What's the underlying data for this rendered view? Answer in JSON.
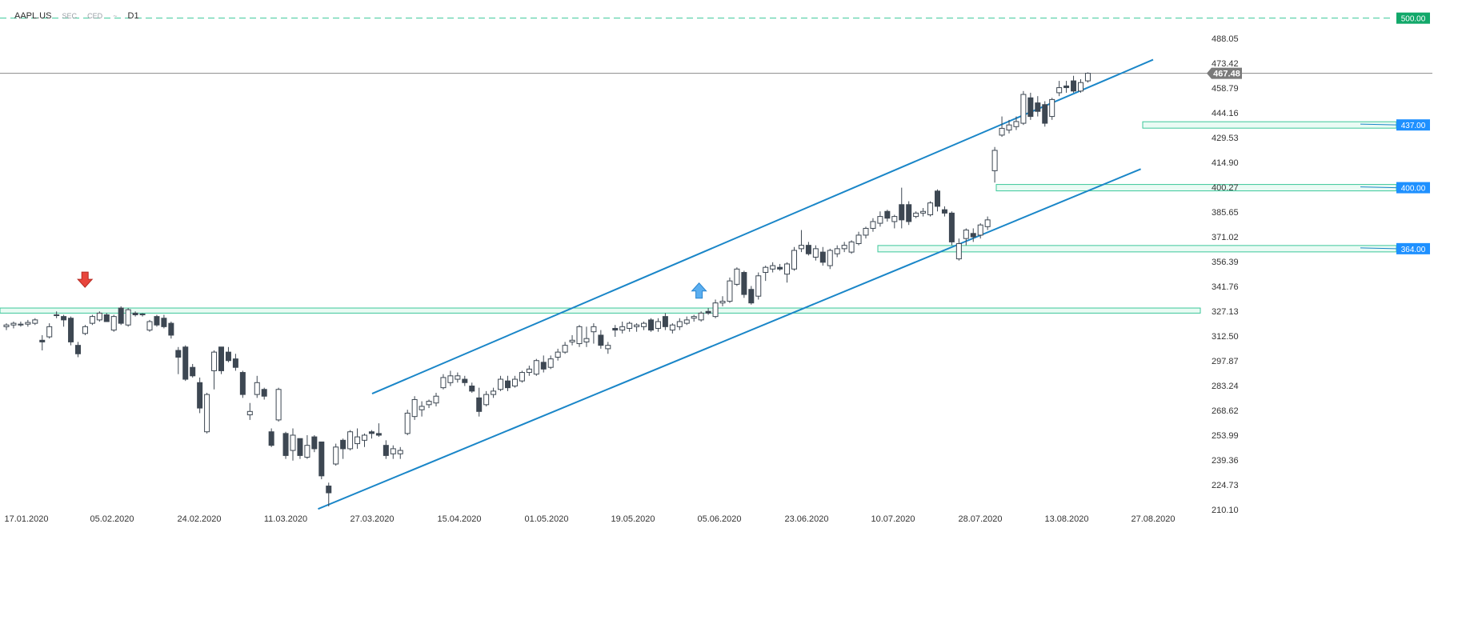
{
  "header": {
    "symbol": "AAPL.US",
    "flags": [
      "SEC",
      "CED",
      "~"
    ],
    "timeframe": "D1"
  },
  "colors": {
    "bull_fill": "#ffffff",
    "bear_fill": "#3d4752",
    "candle_stroke": "#3d4752",
    "trend": "#1a86c8",
    "zone": "#3cc79a",
    "label_blue": "#1e90ff",
    "label_green": "#12a86a",
    "price_tag": "#7a7a7a",
    "grid_text": "#333333"
  },
  "chart_data": {
    "type": "candlestick",
    "instrument": "AAPL.US",
    "timeframe": "D1",
    "ylim": [
      208,
      505
    ],
    "yticks": [
      488.05,
      473.42,
      458.79,
      444.16,
      429.53,
      414.9,
      400.27,
      385.65,
      371.02,
      356.39,
      341.76,
      327.13,
      312.5,
      297.87,
      283.24,
      268.62,
      253.99,
      239.36,
      224.73,
      210.1
    ],
    "xticks": [
      "17.01.2020",
      "05.02.2020",
      "24.02.2020",
      "11.03.2020",
      "27.03.2020",
      "15.04.2020",
      "01.05.2020",
      "19.05.2020",
      "05.06.2020",
      "23.06.2020",
      "10.07.2020",
      "28.07.2020",
      "13.08.2020",
      "27.08.2020"
    ],
    "current_price": 467.48,
    "price_levels": [
      {
        "label": "500.00",
        "price": 500,
        "style": "dashed",
        "tag": "green"
      },
      {
        "label": "437.00",
        "price": 437,
        "style": "zone",
        "tag": "blue"
      },
      {
        "label": "400.00",
        "price": 400,
        "style": "zone",
        "tag": "blue"
      },
      {
        "label": "364.00",
        "price": 364,
        "style": "zone",
        "tag": "blue"
      }
    ],
    "resistance_zone": [
      326,
      329
    ],
    "trend_channel": {
      "upper": [
        {
          "date": "27.03.2020",
          "price": 278.5
        },
        {
          "date": "27.08.2020",
          "price": 475.5
        }
      ],
      "lower": [
        {
          "date": "17.03.2020",
          "price": 210.5
        },
        {
          "date": "25.08.2020",
          "price": 411
        }
      ]
    },
    "markers": [
      {
        "type": "arrow-down",
        "date": "30.01.2020",
        "price": 345
      },
      {
        "type": "arrow-up",
        "date": "01.06.2020",
        "price": 340
      }
    ],
    "candles": [
      {
        "o": 318,
        "h": 320,
        "l": 316,
        "c": 319
      },
      {
        "o": 319,
        "h": 321,
        "l": 317,
        "c": 320
      },
      {
        "o": 319,
        "h": 321,
        "l": 318,
        "c": 319.5
      },
      {
        "o": 319.5,
        "h": 322,
        "l": 318,
        "c": 320.5
      },
      {
        "o": 320,
        "h": 323,
        "l": 319,
        "c": 322
      },
      {
        "o": 310,
        "h": 313,
        "l": 304,
        "c": 309
      },
      {
        "o": 312,
        "h": 320,
        "l": 311,
        "c": 318
      },
      {
        "o": 325,
        "h": 327,
        "l": 323,
        "c": 325
      },
      {
        "o": 324,
        "h": 325,
        "l": 318,
        "c": 322
      },
      {
        "o": 323,
        "h": 324,
        "l": 307,
        "c": 309
      },
      {
        "o": 307,
        "h": 309,
        "l": 300,
        "c": 302
      },
      {
        "o": 314,
        "h": 319,
        "l": 313,
        "c": 318
      },
      {
        "o": 320,
        "h": 325,
        "l": 319,
        "c": 324
      },
      {
        "o": 322,
        "h": 327,
        "l": 321,
        "c": 326
      },
      {
        "o": 325,
        "h": 326,
        "l": 321,
        "c": 321
      },
      {
        "o": 316,
        "h": 325,
        "l": 315,
        "c": 324
      },
      {
        "o": 329,
        "h": 330,
        "l": 319,
        "c": 320
      },
      {
        "o": 319,
        "h": 329,
        "l": 318,
        "c": 328
      },
      {
        "o": 326,
        "h": 327,
        "l": 324,
        "c": 325
      },
      {
        "o": 325,
        "h": 326,
        "l": 324,
        "c": 325.5
      },
      {
        "o": 316,
        "h": 322,
        "l": 315,
        "c": 321
      },
      {
        "o": 324,
        "h": 325,
        "l": 318,
        "c": 319
      },
      {
        "o": 323,
        "h": 325,
        "l": 317,
        "c": 318
      },
      {
        "o": 320,
        "h": 321,
        "l": 311,
        "c": 313
      },
      {
        "o": 304,
        "h": 306,
        "l": 290,
        "c": 300
      },
      {
        "o": 306,
        "h": 307,
        "l": 286,
        "c": 287
      },
      {
        "o": 294,
        "h": 296,
        "l": 288,
        "c": 289
      },
      {
        "o": 285,
        "h": 288,
        "l": 267,
        "c": 270
      },
      {
        "o": 256,
        "h": 279,
        "l": 255,
        "c": 278
      },
      {
        "o": 292,
        "h": 304,
        "l": 281,
        "c": 303
      },
      {
        "o": 306,
        "h": 306,
        "l": 290,
        "c": 292
      },
      {
        "o": 303,
        "h": 306,
        "l": 297,
        "c": 298
      },
      {
        "o": 299,
        "h": 302,
        "l": 292,
        "c": 294
      },
      {
        "o": 291,
        "h": 292,
        "l": 276,
        "c": 278
      },
      {
        "o": 266,
        "h": 273,
        "l": 263,
        "c": 268
      },
      {
        "o": 278,
        "h": 289,
        "l": 276,
        "c": 285
      },
      {
        "o": 281,
        "h": 282,
        "l": 275,
        "c": 277
      },
      {
        "o": 256,
        "h": 258,
        "l": 247,
        "c": 248
      },
      {
        "o": 263,
        "h": 282,
        "l": 262,
        "c": 281
      },
      {
        "o": 255,
        "h": 256,
        "l": 240,
        "c": 242
      },
      {
        "o": 245,
        "h": 258,
        "l": 239,
        "c": 254
      },
      {
        "o": 252,
        "h": 252,
        "l": 240,
        "c": 242
      },
      {
        "o": 241,
        "h": 254,
        "l": 240,
        "c": 248
      },
      {
        "o": 253,
        "h": 254,
        "l": 244,
        "c": 246
      },
      {
        "o": 250,
        "h": 250,
        "l": 228,
        "c": 230
      },
      {
        "o": 224,
        "h": 226,
        "l": 212,
        "c": 220
      },
      {
        "o": 237,
        "h": 249,
        "l": 236,
        "c": 247
      },
      {
        "o": 251,
        "h": 252,
        "l": 240,
        "c": 246
      },
      {
        "o": 246,
        "h": 257,
        "l": 245,
        "c": 256
      },
      {
        "o": 249,
        "h": 258,
        "l": 246,
        "c": 253
      },
      {
        "o": 251,
        "h": 255,
        "l": 247,
        "c": 254
      },
      {
        "o": 256,
        "h": 257,
        "l": 252,
        "c": 255
      },
      {
        "o": 255,
        "h": 261,
        "l": 253,
        "c": 254
      },
      {
        "o": 248,
        "h": 251,
        "l": 240,
        "c": 242
      },
      {
        "o": 243,
        "h": 248,
        "l": 240,
        "c": 246
      },
      {
        "o": 243,
        "h": 247,
        "l": 240,
        "c": 245
      },
      {
        "o": 255,
        "h": 269,
        "l": 254,
        "c": 267
      },
      {
        "o": 265,
        "h": 277,
        "l": 263,
        "c": 275
      },
      {
        "o": 269,
        "h": 274,
        "l": 265,
        "c": 271
      },
      {
        "o": 272,
        "h": 275,
        "l": 270,
        "c": 274
      },
      {
        "o": 273,
        "h": 279,
        "l": 271,
        "c": 277
      },
      {
        "o": 282,
        "h": 290,
        "l": 281,
        "c": 288
      },
      {
        "o": 285,
        "h": 292,
        "l": 283,
        "c": 289
      },
      {
        "o": 287,
        "h": 291,
        "l": 285,
        "c": 289
      },
      {
        "o": 287,
        "h": 289,
        "l": 283,
        "c": 285
      },
      {
        "o": 283,
        "h": 285,
        "l": 279,
        "c": 280
      },
      {
        "o": 276,
        "h": 282,
        "l": 265,
        "c": 268
      },
      {
        "o": 272,
        "h": 280,
        "l": 271,
        "c": 278
      },
      {
        "o": 278,
        "h": 282,
        "l": 276,
        "c": 280
      },
      {
        "o": 281,
        "h": 289,
        "l": 280,
        "c": 287
      },
      {
        "o": 286,
        "h": 289,
        "l": 280,
        "c": 282
      },
      {
        "o": 283,
        "h": 289,
        "l": 282,
        "c": 287
      },
      {
        "o": 286,
        "h": 292,
        "l": 285,
        "c": 291
      },
      {
        "o": 291,
        "h": 295,
        "l": 289,
        "c": 293
      },
      {
        "o": 290,
        "h": 299,
        "l": 289,
        "c": 298
      },
      {
        "o": 297,
        "h": 301,
        "l": 291,
        "c": 293
      },
      {
        "o": 294,
        "h": 301,
        "l": 293,
        "c": 299
      },
      {
        "o": 300,
        "h": 305,
        "l": 298,
        "c": 303
      },
      {
        "o": 303,
        "h": 309,
        "l": 302,
        "c": 307
      },
      {
        "o": 309,
        "h": 313,
        "l": 307,
        "c": 310
      },
      {
        "o": 308,
        "h": 319,
        "l": 306,
        "c": 318
      },
      {
        "o": 309,
        "h": 318,
        "l": 306,
        "c": 311
      },
      {
        "o": 315,
        "h": 320,
        "l": 308,
        "c": 318
      },
      {
        "o": 313,
        "h": 316,
        "l": 305,
        "c": 307
      },
      {
        "o": 305,
        "h": 309,
        "l": 302,
        "c": 307
      },
      {
        "o": 317,
        "h": 319,
        "l": 312,
        "c": 316
      },
      {
        "o": 316,
        "h": 321,
        "l": 314,
        "c": 318
      },
      {
        "o": 317,
        "h": 321,
        "l": 315,
        "c": 320
      },
      {
        "o": 318,
        "h": 320,
        "l": 315,
        "c": 319
      },
      {
        "o": 318,
        "h": 321,
        "l": 316,
        "c": 320
      },
      {
        "o": 322,
        "h": 323,
        "l": 315,
        "c": 316
      },
      {
        "o": 317,
        "h": 323,
        "l": 315,
        "c": 321
      },
      {
        "o": 324,
        "h": 326,
        "l": 316,
        "c": 318
      },
      {
        "o": 316,
        "h": 320,
        "l": 314,
        "c": 319
      },
      {
        "o": 318,
        "h": 323,
        "l": 316,
        "c": 321
      },
      {
        "o": 320,
        "h": 324,
        "l": 319,
        "c": 322
      },
      {
        "o": 323,
        "h": 325,
        "l": 321,
        "c": 324
      },
      {
        "o": 322,
        "h": 327,
        "l": 321,
        "c": 326
      },
      {
        "o": 327,
        "h": 329,
        "l": 325,
        "c": 326
      },
      {
        "o": 324,
        "h": 334,
        "l": 323,
        "c": 332
      },
      {
        "o": 332,
        "h": 336,
        "l": 330,
        "c": 333
      },
      {
        "o": 333,
        "h": 347,
        "l": 332,
        "c": 345
      },
      {
        "o": 343,
        "h": 353,
        "l": 342,
        "c": 352
      },
      {
        "o": 350,
        "h": 351,
        "l": 335,
        "c": 337
      },
      {
        "o": 340,
        "h": 342,
        "l": 331,
        "c": 332
      },
      {
        "o": 336,
        "h": 350,
        "l": 334,
        "c": 348
      },
      {
        "o": 350,
        "h": 354,
        "l": 345,
        "c": 353
      },
      {
        "o": 352,
        "h": 356,
        "l": 350,
        "c": 354
      },
      {
        "o": 353,
        "h": 355,
        "l": 351,
        "c": 352
      },
      {
        "o": 349,
        "h": 356,
        "l": 344,
        "c": 355
      },
      {
        "o": 352,
        "h": 365,
        "l": 351,
        "c": 363
      },
      {
        "o": 364,
        "h": 375,
        "l": 362,
        "c": 366
      },
      {
        "o": 366,
        "h": 368,
        "l": 360,
        "c": 361
      },
      {
        "o": 359,
        "h": 366,
        "l": 357,
        "c": 364
      },
      {
        "o": 362,
        "h": 365,
        "l": 354,
        "c": 356
      },
      {
        "o": 354,
        "h": 364,
        "l": 352,
        "c": 363
      },
      {
        "o": 361,
        "h": 366,
        "l": 359,
        "c": 364
      },
      {
        "o": 364,
        "h": 368,
        "l": 362,
        "c": 366
      },
      {
        "o": 362,
        "h": 369,
        "l": 361,
        "c": 368
      },
      {
        "o": 367,
        "h": 374,
        "l": 366,
        "c": 372
      },
      {
        "o": 372,
        "h": 377,
        "l": 370,
        "c": 376
      },
      {
        "o": 376,
        "h": 382,
        "l": 374,
        "c": 380
      },
      {
        "o": 379,
        "h": 386,
        "l": 377,
        "c": 383
      },
      {
        "o": 386,
        "h": 387,
        "l": 380,
        "c": 382
      },
      {
        "o": 380,
        "h": 384,
        "l": 376,
        "c": 383
      },
      {
        "o": 390,
        "h": 400,
        "l": 376,
        "c": 381
      },
      {
        "o": 390,
        "h": 392,
        "l": 378,
        "c": 380
      },
      {
        "o": 383,
        "h": 386,
        "l": 382,
        "c": 385
      },
      {
        "o": 385,
        "h": 388,
        "l": 383,
        "c": 386
      },
      {
        "o": 384,
        "h": 392,
        "l": 383,
        "c": 391
      },
      {
        "o": 398,
        "h": 399,
        "l": 386,
        "c": 389
      },
      {
        "o": 387,
        "h": 389,
        "l": 383,
        "c": 385
      },
      {
        "o": 385,
        "h": 386,
        "l": 366,
        "c": 368
      },
      {
        "o": 358,
        "h": 370,
        "l": 357,
        "c": 367
      },
      {
        "o": 370,
        "h": 376,
        "l": 366,
        "c": 375
      },
      {
        "o": 373,
        "h": 376,
        "l": 368,
        "c": 371
      },
      {
        "o": 372,
        "h": 379,
        "l": 370,
        "c": 378
      },
      {
        "o": 377,
        "h": 383,
        "l": 375,
        "c": 381
      },
      {
        "o": 410,
        "h": 424,
        "l": 403,
        "c": 422
      },
      {
        "o": 431,
        "h": 442,
        "l": 430,
        "c": 435
      },
      {
        "o": 434,
        "h": 440,
        "l": 432,
        "c": 437
      },
      {
        "o": 436,
        "h": 442,
        "l": 434,
        "c": 439
      },
      {
        "o": 438,
        "h": 457,
        "l": 437,
        "c": 455
      },
      {
        "o": 453,
        "h": 456,
        "l": 440,
        "c": 442
      },
      {
        "o": 450,
        "h": 454,
        "l": 442,
        "c": 445
      },
      {
        "o": 449,
        "h": 451,
        "l": 436,
        "c": 438
      },
      {
        "o": 442,
        "h": 453,
        "l": 440,
        "c": 452
      },
      {
        "o": 456,
        "h": 463,
        "l": 454,
        "c": 459
      },
      {
        "o": 460,
        "h": 463,
        "l": 456,
        "c": 459
      },
      {
        "o": 463,
        "h": 466,
        "l": 456,
        "c": 457
      },
      {
        "o": 457,
        "h": 464,
        "l": 456,
        "c": 462
      },
      {
        "o": 463,
        "h": 468,
        "l": 462,
        "c": 467.48
      }
    ]
  }
}
